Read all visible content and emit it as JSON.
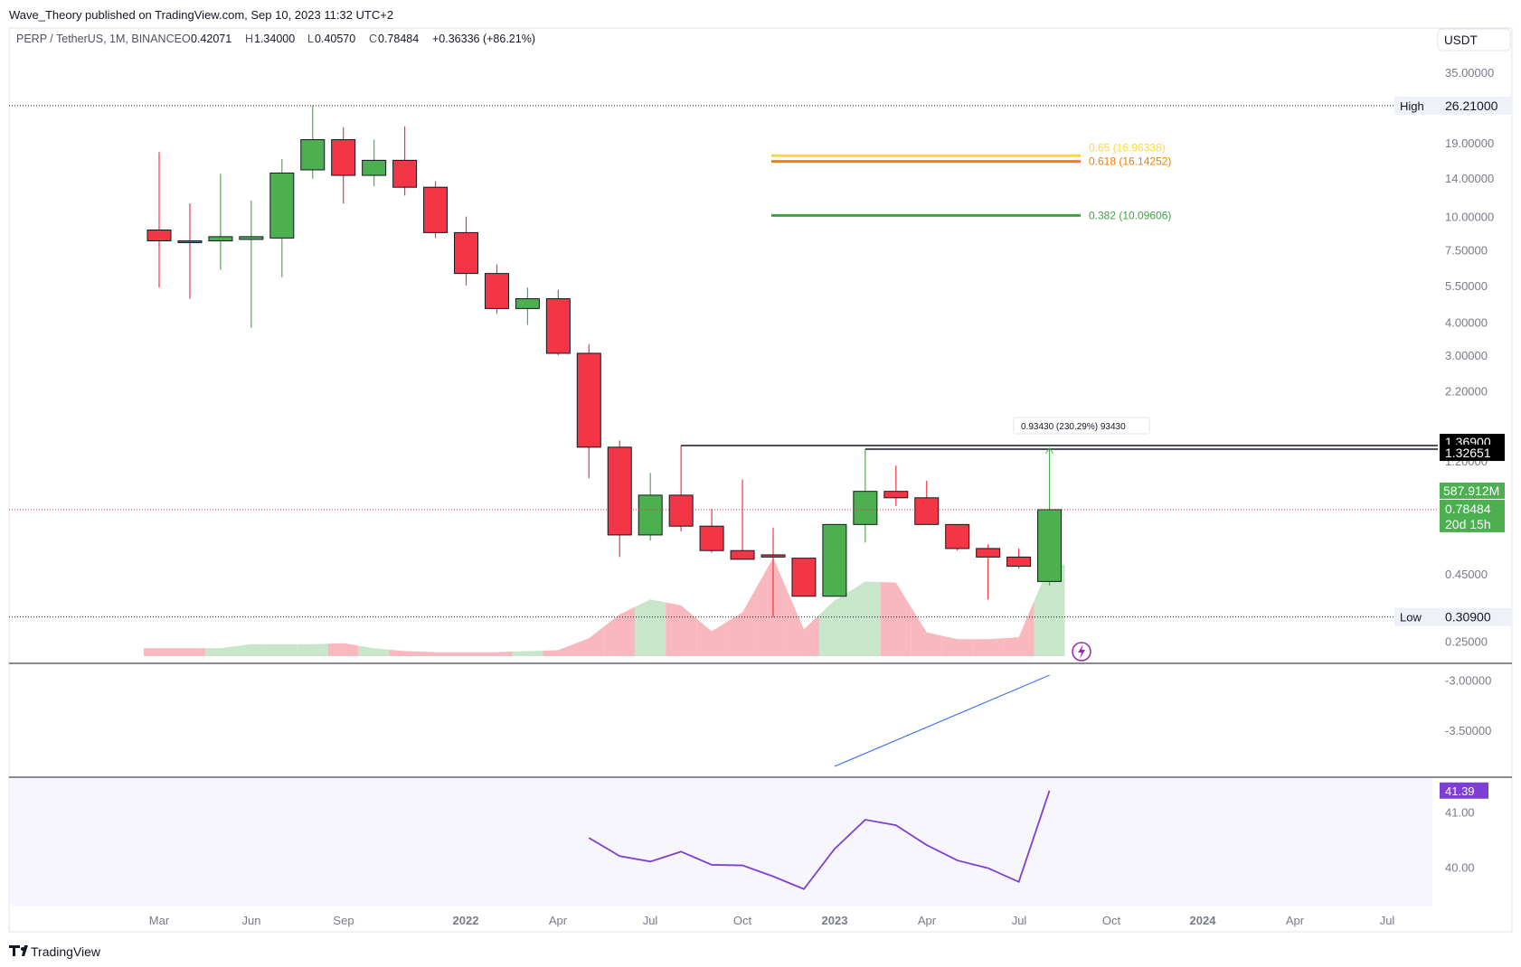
{
  "header": {
    "publisher": "Wave_Theory published on TradingView.com, Sep 10, 2023 11:32 UTC+2"
  },
  "legend": {
    "symbol": "PERP / TetherUS, 1M, BINANCE",
    "o_label": "O",
    "o_value": "0.42071",
    "h_label": "H",
    "h_value": "1.34000",
    "l_label": "L",
    "l_value": "0.40570",
    "c_label": "C",
    "c_value": "0.78484",
    "change": "+0.36336 (+86.21%)"
  },
  "currency_button": "USDT",
  "footer": {
    "brand": "TradingView"
  },
  "colors": {
    "up": "#4caf50",
    "down": "#f23645",
    "up_vol": "#c8e6c9",
    "down_vol": "#f9b8bd",
    "rsi": "#7e3fd4",
    "blue_line": "#2962ff",
    "fib_382": "#43a047",
    "fib_618": "#f57c00",
    "fib_65": "#fdd835",
    "grid_bg": "#f8f6fd"
  },
  "chart_data": {
    "type": "candlestick",
    "timeframe": "1M",
    "y_scale": "log",
    "ylim": [
      0.22,
      35
    ],
    "price_axis_ticks": [
      "35.00000",
      "19.00000",
      "14.00000",
      "10.00000",
      "7.50000",
      "5.50000",
      "4.00000",
      "3.00000",
      "2.20000",
      "1.20000",
      "0.45000",
      "0.25000"
    ],
    "x_ticks": [
      {
        "label": "Mar",
        "bold": false
      },
      {
        "label": "Jun",
        "bold": false
      },
      {
        "label": "Sep",
        "bold": false
      },
      {
        "label": "2022",
        "bold": true
      },
      {
        "label": "Apr",
        "bold": false
      },
      {
        "label": "Jul",
        "bold": false
      },
      {
        "label": "Oct",
        "bold": false
      },
      {
        "label": "2023",
        "bold": true
      },
      {
        "label": "Apr",
        "bold": false
      },
      {
        "label": "Jul",
        "bold": false
      },
      {
        "label": "Oct",
        "bold": false
      },
      {
        "label": "2024",
        "bold": true
      },
      {
        "label": "Apr",
        "bold": false
      },
      {
        "label": "Jul",
        "bold": false
      }
    ],
    "candles": [
      {
        "date": "2021-04",
        "open": 8.9,
        "high": 17.5,
        "low": 5.4,
        "close": 8.1
      },
      {
        "date": "2021-05",
        "open": 8.1,
        "high": 11.2,
        "low": 4.9,
        "close": 8.0
      },
      {
        "date": "2021-06",
        "open": 8.1,
        "high": 14.5,
        "low": 6.3,
        "close": 8.4
      },
      {
        "date": "2021-07",
        "open": 8.2,
        "high": 11.5,
        "low": 3.8,
        "close": 8.4
      },
      {
        "date": "2021-08",
        "open": 8.3,
        "high": 16.5,
        "low": 5.9,
        "close": 14.6
      },
      {
        "date": "2021-09",
        "open": 15.0,
        "high": 26.21,
        "low": 13.9,
        "close": 19.5
      },
      {
        "date": "2021-10",
        "open": 19.5,
        "high": 21.7,
        "low": 11.2,
        "close": 14.3
      },
      {
        "date": "2021-11",
        "open": 14.3,
        "high": 19.5,
        "low": 13.0,
        "close": 16.3
      },
      {
        "date": "2021-12",
        "open": 16.3,
        "high": 21.9,
        "low": 12.0,
        "close": 12.9
      },
      {
        "date": "2022-01",
        "open": 12.9,
        "high": 13.6,
        "low": 8.3,
        "close": 8.7
      },
      {
        "date": "2022-02",
        "open": 8.7,
        "high": 10.0,
        "low": 5.5,
        "close": 6.1
      },
      {
        "date": "2022-03",
        "open": 6.1,
        "high": 6.6,
        "low": 4.3,
        "close": 4.5
      },
      {
        "date": "2022-04",
        "open": 4.5,
        "high": 5.4,
        "low": 3.9,
        "close": 4.9
      },
      {
        "date": "2022-05",
        "open": 4.9,
        "high": 5.3,
        "low": 3.0,
        "close": 3.05
      },
      {
        "date": "2022-06",
        "open": 3.05,
        "high": 3.3,
        "low": 1.03,
        "close": 1.35
      },
      {
        "date": "2022-07",
        "open": 1.35,
        "high": 1.43,
        "low": 0.52,
        "close": 0.63
      },
      {
        "date": "2022-08",
        "open": 0.63,
        "high": 1.08,
        "low": 0.6,
        "close": 0.89
      },
      {
        "date": "2022-09",
        "open": 0.89,
        "high": 1.369,
        "low": 0.65,
        "close": 0.68
      },
      {
        "date": "2022-10",
        "open": 0.68,
        "high": 0.79,
        "low": 0.54,
        "close": 0.55
      },
      {
        "date": "2022-11",
        "open": 0.55,
        "high": 1.02,
        "low": 0.53,
        "close": 0.51
      },
      {
        "date": "2022-12",
        "open": 0.53,
        "high": 0.67,
        "low": 0.309,
        "close": 0.52
      },
      {
        "date": "2023-01",
        "open": 0.515,
        "high": 0.51,
        "low": 0.37,
        "close": 0.37
      },
      {
        "date": "2023-02",
        "open": 0.37,
        "high": 0.69,
        "low": 0.37,
        "close": 0.69
      },
      {
        "date": "2023-03",
        "open": 0.69,
        "high": 1.327,
        "low": 0.59,
        "close": 0.92
      },
      {
        "date": "2023-04",
        "open": 0.92,
        "high": 1.15,
        "low": 0.81,
        "close": 0.87
      },
      {
        "date": "2023-05",
        "open": 0.87,
        "high": 1.01,
        "low": 0.69,
        "close": 0.69
      },
      {
        "date": "2023-06",
        "open": 0.69,
        "high": 0.69,
        "low": 0.55,
        "close": 0.56
      },
      {
        "date": "2023-07",
        "open": 0.56,
        "high": 0.58,
        "low": 0.36,
        "close": 0.52
      },
      {
        "date": "2023-08",
        "open": 0.52,
        "high": 0.56,
        "low": 0.47,
        "close": 0.48
      },
      {
        "date": "2023-09",
        "open": 0.42071,
        "high": 1.34,
        "low": 0.4057,
        "close": 0.78484
      }
    ],
    "high_marker": {
      "label": "High",
      "value": "26.21000",
      "price": 26.21
    },
    "low_marker": {
      "label": "Low",
      "value": "0.30900",
      "price": 0.309
    },
    "fib_levels": [
      {
        "label": "0.65 (16.96338)",
        "price": 16.96338,
        "color": "#fdd835"
      },
      {
        "label": "0.618 (16.14252)",
        "price": 16.14252,
        "color": "#f57c00"
      },
      {
        "label": "0.382 (10.09606)",
        "price": 10.09606,
        "color": "#43a047"
      }
    ],
    "resistance_lines": [
      {
        "price": 1.369,
        "label": "1.36900",
        "from": "2022-09"
      },
      {
        "price": 1.32651,
        "label": "1.32651",
        "from": "2023-03"
      }
    ],
    "measure_label": "0.93430 (230.29%) 93430",
    "current_price": {
      "volume": "587.912M",
      "price": "0.78484",
      "countdown": "20d 15h"
    },
    "volume_relative": [
      0.08,
      0.08,
      0.08,
      0.12,
      0.12,
      0.12,
      0.13,
      0.08,
      0.05,
      0.04,
      0.04,
      0.04,
      0.05,
      0.06,
      0.18,
      0.42,
      0.57,
      0.51,
      0.25,
      0.44,
      0.99,
      0.27,
      0.56,
      0.75,
      0.74,
      0.24,
      0.17,
      0.17,
      0.19,
      0.92
    ],
    "indicator_pane1": {
      "ticks": [
        "-3.00000",
        "-3.50000"
      ],
      "ylim": [
        -3.95,
        -2.85
      ],
      "line": [
        {
          "date": "2023-02",
          "value": -3.86
        },
        {
          "date": "2023-09",
          "value": -2.95
        }
      ]
    },
    "rsi_pane": {
      "ticks": [
        "41.00",
        "40.00"
      ],
      "current": "41.39",
      "ylim": [
        39.3,
        41.6
      ],
      "values": [
        {
          "date": "2022-06",
          "value": 40.53
        },
        {
          "date": "2022-07",
          "value": 40.2
        },
        {
          "date": "2022-08",
          "value": 40.1
        },
        {
          "date": "2022-09",
          "value": 40.28
        },
        {
          "date": "2022-10",
          "value": 40.04
        },
        {
          "date": "2022-11",
          "value": 40.03
        },
        {
          "date": "2022-12",
          "value": 39.83
        },
        {
          "date": "2023-01",
          "value": 39.6
        },
        {
          "date": "2023-02",
          "value": 40.33
        },
        {
          "date": "2023-03",
          "value": 40.86
        },
        {
          "date": "2023-04",
          "value": 40.76
        },
        {
          "date": "2023-05",
          "value": 40.4
        },
        {
          "date": "2023-06",
          "value": 40.12
        },
        {
          "date": "2023-07",
          "value": 39.98
        },
        {
          "date": "2023-08",
          "value": 39.73
        },
        {
          "date": "2023-09",
          "value": 41.39
        }
      ]
    }
  }
}
